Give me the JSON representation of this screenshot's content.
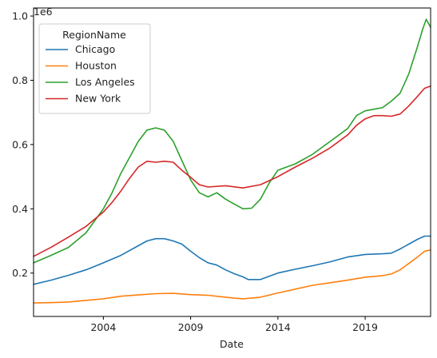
{
  "chart_data": {
    "type": "line",
    "title": "",
    "xlabel": "Date",
    "ylabel": "",
    "y_offset_label": "1e6",
    "xlim": [
      2000.0,
      2022.75
    ],
    "ylim": [
      0.065,
      1.025
    ],
    "x_ticks": [
      2004,
      2009,
      2014,
      2019
    ],
    "y_ticks": [
      0.2,
      0.4,
      0.6,
      0.8,
      1.0
    ],
    "x_tick_labels": [
      "2004",
      "2009",
      "2014",
      "2019"
    ],
    "y_tick_labels": [
      "0.2",
      "0.4",
      "0.6",
      "0.8",
      "1.0"
    ],
    "grid": false,
    "legend": {
      "title": "RegionName",
      "position": "top-left"
    },
    "series": [
      {
        "name": "Chicago",
        "color": "#1f77b4",
        "points": [
          [
            2000.0,
            0.165
          ],
          [
            2001.0,
            0.178
          ],
          [
            2002.0,
            0.193
          ],
          [
            2003.0,
            0.21
          ],
          [
            2004.0,
            0.232
          ],
          [
            2005.0,
            0.255
          ],
          [
            2006.0,
            0.285
          ],
          [
            2006.5,
            0.3
          ],
          [
            2007.0,
            0.307
          ],
          [
            2007.5,
            0.307
          ],
          [
            2008.0,
            0.3
          ],
          [
            2008.5,
            0.29
          ],
          [
            2009.0,
            0.268
          ],
          [
            2009.5,
            0.248
          ],
          [
            2010.0,
            0.232
          ],
          [
            2010.5,
            0.225
          ],
          [
            2011.0,
            0.21
          ],
          [
            2011.5,
            0.198
          ],
          [
            2012.0,
            0.188
          ],
          [
            2012.3,
            0.18
          ],
          [
            2013.0,
            0.18
          ],
          [
            2013.5,
            0.19
          ],
          [
            2014.0,
            0.2
          ],
          [
            2015.0,
            0.212
          ],
          [
            2016.0,
            0.223
          ],
          [
            2017.0,
            0.235
          ],
          [
            2018.0,
            0.25
          ],
          [
            2019.0,
            0.258
          ],
          [
            2020.0,
            0.26
          ],
          [
            2020.5,
            0.262
          ],
          [
            2021.0,
            0.275
          ],
          [
            2021.5,
            0.29
          ],
          [
            2022.0,
            0.305
          ],
          [
            2022.4,
            0.315
          ],
          [
            2022.75,
            0.315
          ]
        ]
      },
      {
        "name": "Houston",
        "color": "#ff7f0e",
        "points": [
          [
            2000.0,
            0.107
          ],
          [
            2001.0,
            0.108
          ],
          [
            2002.0,
            0.11
          ],
          [
            2003.0,
            0.115
          ],
          [
            2004.0,
            0.12
          ],
          [
            2005.0,
            0.128
          ],
          [
            2006.0,
            0.132
          ],
          [
            2007.0,
            0.136
          ],
          [
            2008.0,
            0.137
          ],
          [
            2009.0,
            0.133
          ],
          [
            2010.0,
            0.131
          ],
          [
            2011.0,
            0.125
          ],
          [
            2011.5,
            0.122
          ],
          [
            2012.0,
            0.12
          ],
          [
            2013.0,
            0.125
          ],
          [
            2014.0,
            0.138
          ],
          [
            2015.0,
            0.15
          ],
          [
            2016.0,
            0.162
          ],
          [
            2017.0,
            0.17
          ],
          [
            2018.0,
            0.178
          ],
          [
            2019.0,
            0.187
          ],
          [
            2020.0,
            0.192
          ],
          [
            2020.5,
            0.197
          ],
          [
            2021.0,
            0.21
          ],
          [
            2021.5,
            0.23
          ],
          [
            2022.0,
            0.25
          ],
          [
            2022.4,
            0.268
          ],
          [
            2022.75,
            0.272
          ]
        ]
      },
      {
        "name": "Los Angeles",
        "color": "#2ca02c",
        "points": [
          [
            2000.0,
            0.232
          ],
          [
            2001.0,
            0.255
          ],
          [
            2002.0,
            0.28
          ],
          [
            2003.0,
            0.325
          ],
          [
            2004.0,
            0.4
          ],
          [
            2004.5,
            0.45
          ],
          [
            2005.0,
            0.51
          ],
          [
            2005.5,
            0.56
          ],
          [
            2006.0,
            0.61
          ],
          [
            2006.5,
            0.645
          ],
          [
            2007.0,
            0.652
          ],
          [
            2007.5,
            0.645
          ],
          [
            2008.0,
            0.61
          ],
          [
            2008.5,
            0.55
          ],
          [
            2009.0,
            0.49
          ],
          [
            2009.5,
            0.45
          ],
          [
            2010.0,
            0.437
          ],
          [
            2010.5,
            0.45
          ],
          [
            2011.0,
            0.43
          ],
          [
            2011.5,
            0.415
          ],
          [
            2012.0,
            0.4
          ],
          [
            2012.5,
            0.402
          ],
          [
            2013.0,
            0.43
          ],
          [
            2013.5,
            0.48
          ],
          [
            2014.0,
            0.52
          ],
          [
            2014.5,
            0.53
          ],
          [
            2015.0,
            0.54
          ],
          [
            2016.0,
            0.57
          ],
          [
            2017.0,
            0.61
          ],
          [
            2018.0,
            0.65
          ],
          [
            2018.5,
            0.69
          ],
          [
            2019.0,
            0.705
          ],
          [
            2019.5,
            0.71
          ],
          [
            2020.0,
            0.715
          ],
          [
            2020.5,
            0.735
          ],
          [
            2021.0,
            0.76
          ],
          [
            2021.5,
            0.82
          ],
          [
            2022.0,
            0.905
          ],
          [
            2022.3,
            0.96
          ],
          [
            2022.5,
            0.99
          ],
          [
            2022.75,
            0.965
          ]
        ]
      },
      {
        "name": "New York",
        "color": "#d62728",
        "points": [
          [
            2000.0,
            0.252
          ],
          [
            2001.0,
            0.28
          ],
          [
            2002.0,
            0.312
          ],
          [
            2003.0,
            0.345
          ],
          [
            2004.0,
            0.39
          ],
          [
            2004.5,
            0.42
          ],
          [
            2005.0,
            0.455
          ],
          [
            2005.5,
            0.495
          ],
          [
            2006.0,
            0.53
          ],
          [
            2006.5,
            0.548
          ],
          [
            2007.0,
            0.545
          ],
          [
            2007.5,
            0.548
          ],
          [
            2008.0,
            0.545
          ],
          [
            2008.5,
            0.52
          ],
          [
            2009.0,
            0.498
          ],
          [
            2009.5,
            0.475
          ],
          [
            2010.0,
            0.468
          ],
          [
            2011.0,
            0.472
          ],
          [
            2012.0,
            0.465
          ],
          [
            2013.0,
            0.475
          ],
          [
            2014.0,
            0.5
          ],
          [
            2015.0,
            0.53
          ],
          [
            2016.0,
            0.558
          ],
          [
            2017.0,
            0.59
          ],
          [
            2018.0,
            0.63
          ],
          [
            2018.5,
            0.66
          ],
          [
            2019.0,
            0.68
          ],
          [
            2019.5,
            0.69
          ],
          [
            2020.0,
            0.69
          ],
          [
            2020.5,
            0.688
          ],
          [
            2021.0,
            0.695
          ],
          [
            2021.5,
            0.72
          ],
          [
            2022.0,
            0.75
          ],
          [
            2022.4,
            0.775
          ],
          [
            2022.75,
            0.782
          ]
        ]
      }
    ]
  }
}
